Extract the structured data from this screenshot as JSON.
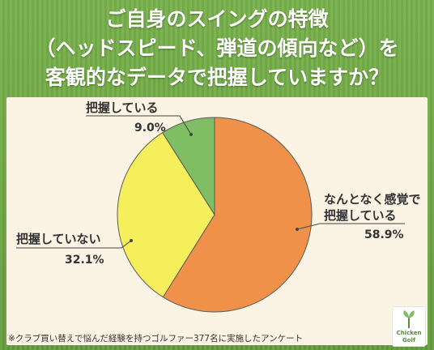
{
  "title_lines": [
    "ご自身のスイングの特徴",
    "（ヘッドスピード、弾道の傾向など）を",
    "客観的なデータで把握していますか？"
  ],
  "footnote": "※クラブ買い替えで悩んだ経験を持つゴルファー377名に実施したアンケート",
  "logo": {
    "line1": "Chicken",
    "line2": "Golf"
  },
  "colors": {
    "background": "#6ea843",
    "panel": "#fbf3e3",
    "slice_orange": "#f0914a",
    "slice_yellow": "#f4ef5a",
    "slice_green": "#7fbe63"
  },
  "chart_data": {
    "type": "pie",
    "title": "",
    "slices": [
      {
        "label": "なんとなく感覚で把握している",
        "label_lines": [
          "なんとなく感覚で",
          "把握している"
        ],
        "value": 58.9,
        "display": "58.9%",
        "color": "#f0914a"
      },
      {
        "label": "把握していない",
        "label_lines": [
          "把握していない"
        ],
        "value": 32.1,
        "display": "32.1%",
        "color": "#f4ef5a"
      },
      {
        "label": "把握している",
        "label_lines": [
          "把握している"
        ],
        "value": 9.0,
        "display": "9.0%",
        "color": "#7fbe63"
      }
    ]
  }
}
